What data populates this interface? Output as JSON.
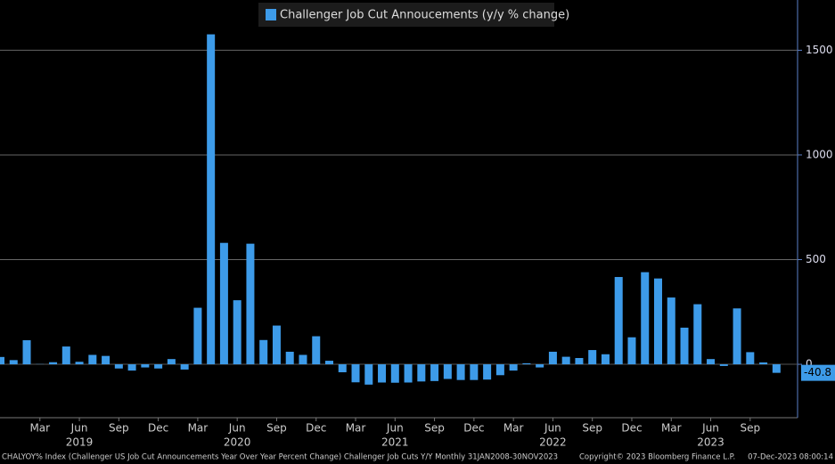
{
  "chart_data": {
    "type": "bar",
    "title": "Challenger Job Cut Annoucements (y/y % change)",
    "categories": [
      null,
      null,
      null,
      "Mar",
      null,
      null,
      "Jun",
      null,
      null,
      "Sep",
      null,
      null,
      "Dec",
      null,
      null,
      "Mar",
      null,
      null,
      "Jun",
      null,
      null,
      "Sep",
      null,
      null,
      "Dec",
      null,
      null,
      "Mar",
      null,
      null,
      "Jun",
      null,
      null,
      "Sep",
      null,
      null,
      "Dec",
      null,
      null,
      "Mar",
      null,
      null,
      "Jun",
      null,
      null,
      "Sep",
      null,
      null,
      "Dec",
      null,
      null,
      "Mar",
      null,
      null,
      "Jun",
      null,
      null,
      "Sep",
      null,
      null
    ],
    "years": [
      "2019",
      "2020",
      "2021",
      "2022",
      "2023"
    ],
    "series": [
      {
        "name": "Challenger Job Cut Annoucements (y/y % change)",
        "color": "#3d9be9",
        "values": [
          35,
          20,
          115,
          1,
          10,
          85,
          12,
          45,
          40,
          -20,
          -30,
          -15,
          -20,
          25,
          -25,
          270,
          1576,
          580,
          306,
          576,
          116,
          185,
          60,
          45,
          134,
          17,
          -38,
          -86,
          -97,
          -87,
          -88,
          -87,
          -82,
          -80,
          -70,
          -75,
          -75,
          -73,
          -52,
          -30,
          5,
          -15,
          60,
          36,
          30,
          68,
          48,
          417,
          129,
          440,
          410,
          319,
          175,
          287,
          25,
          -8,
          267,
          58,
          9,
          -40.8
        ]
      }
    ],
    "ylim": [
      -255,
      1740
    ],
    "yticks": [
      0,
      500,
      1000,
      1500
    ],
    "grid": true,
    "footer": {
      "source": "CHALYOY% Index (Challenger US Job Cut Announcements Year Over Year Percent Change) Challenger Job Cuts Y/Y  Monthly 31JAN2008-30NOV2023",
      "copyright": "Copyright© 2023 Bloomberg Finance L.P.",
      "timestamp": "07-Dec-2023 08:00:14"
    }
  }
}
